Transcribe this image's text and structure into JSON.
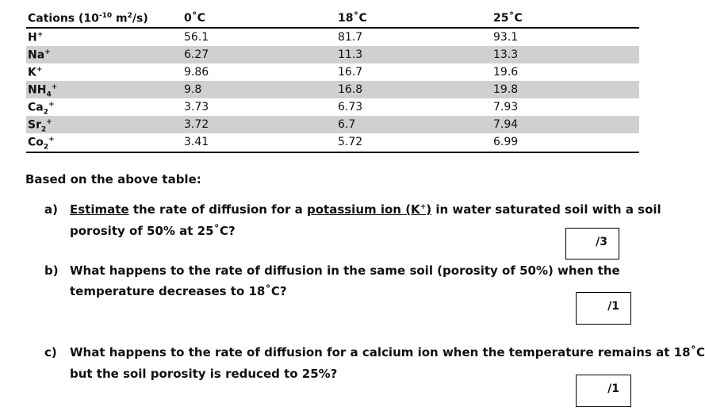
{
  "table": {
    "headers": [
      "Cations (10",
      "-10",
      " m",
      "2",
      "/s)",
      "0˚C",
      "18˚C",
      "25˚C"
    ],
    "rows": [
      {
        "ion": "H",
        "sup": "+",
        "sub": "",
        "v0": "56.1",
        "v18": "81.7",
        "v25": "93.1"
      },
      {
        "ion": "Na",
        "sup": "+",
        "sub": "",
        "v0": "6.27",
        "v18": "11.3",
        "v25": "13.3"
      },
      {
        "ion": "K",
        "sup": "+",
        "sub": "",
        "v0": "9.86",
        "v18": "16.7",
        "v25": "19.6"
      },
      {
        "ion": "NH",
        "sup": "+",
        "sub": "4",
        "v0": "9.8",
        "v18": "16.8",
        "v25": "19.8"
      },
      {
        "ion": "Ca",
        "sup": "+",
        "sub": "2",
        "v0": "3.73",
        "v18": "6.73",
        "v25": "7.93"
      },
      {
        "ion": "Sr",
        "sup": "+",
        "sub": "2",
        "v0": "3.72",
        "v18": "6.7",
        "v25": "7.94"
      },
      {
        "ion": "Co",
        "sup": "+",
        "sub": "2",
        "v0": "3.41",
        "v18": "5.72",
        "v25": "6.99"
      }
    ]
  },
  "intro": "Based on the above table:",
  "questions": {
    "a": {
      "label": "a)",
      "estimate": "Estimate",
      "mid": " the rate of diffusion for a ",
      "ion": "potassium ion ",
      "paren_open": "(K",
      "plus": "+",
      "paren_close": ")",
      "rest": " in water saturated soil with a soil",
      "line2": "porosity of 50% at 25˚C?",
      "score": "/3"
    },
    "b": {
      "label": "b)",
      "line1": "What happens to the rate of diffusion in the same soil (porosity of 50%) when the",
      "line2": "temperature decreases to 18˚C?",
      "score": "/1"
    },
    "c": {
      "label": "c)",
      "line1": "What happens to the rate of diffusion for a calcium ion when the temperature remains at 18˚C",
      "line2": "but the soil porosity is reduced to 25%?",
      "score": "/1"
    }
  }
}
